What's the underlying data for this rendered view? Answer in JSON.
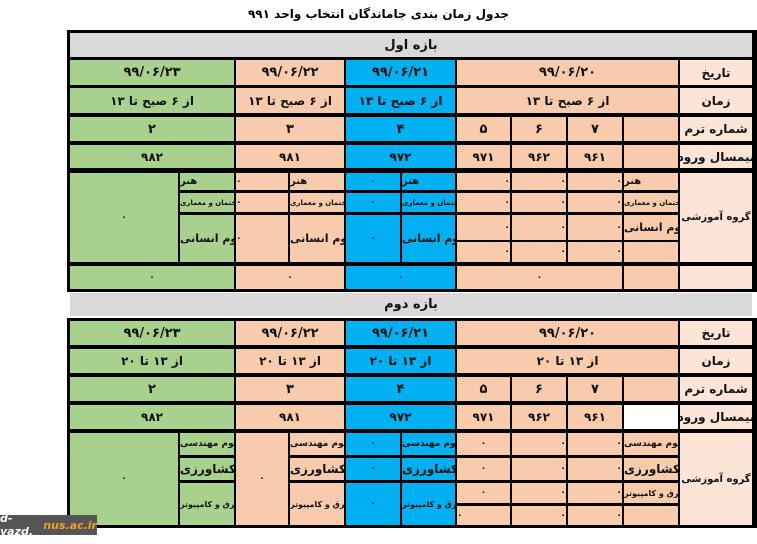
{
  "title": "جدول زمان بندی جاماندگان  انتخاب واحد ۹۹۱",
  "watermark": {
    "a": "d-yazd.",
    "b": "nus.ac.ir"
  },
  "colors": {
    "salmon": "#f8cbad",
    "blue": "#00b0f0",
    "green": "#a9d18e",
    "label": "#fce4d6",
    "band": "#d9d9d9"
  },
  "labels": {
    "date": "تاریخ",
    "time": "زمان",
    "term": "شماره ترم",
    "entry": "نیمسال ورود",
    "group": "گروه آموزشی"
  },
  "zero": "٠",
  "period1": {
    "band": "بازه اول",
    "dates": [
      "۹۹/۰۶/۲۰",
      "۹۹/۰۶/۲۱",
      "۹۹/۰۶/۲۲",
      "۹۹/۰۶/۲۳"
    ],
    "time": "از ۶ صبح تا ۱۳",
    "terms": [
      "",
      "۷",
      "۶",
      "۵",
      "۴",
      "۳",
      "۲"
    ],
    "entries": [
      "",
      "۹۶۱",
      "۹۶۲",
      "۹۷۱",
      "۹۷۲",
      "۹۸۱",
      "۹۸۲"
    ],
    "groups": [
      "هنر",
      "ساختمان و معماری",
      "علوم انسانی"
    ]
  },
  "period2": {
    "band": "بازه دوم",
    "dates": [
      "۹۹/۰۶/۲۰",
      "۹۹/۰۶/۲۱",
      "۹۹/۰۶/۲۲",
      "۹۹/۰۶/۲۳"
    ],
    "time": "از ۱۳  تا ۲۰",
    "terms": [
      "",
      "۷",
      "۶",
      "۵",
      "۴",
      "۳",
      "۲"
    ],
    "entries": [
      "",
      "۹۶۱",
      "۹۶۲",
      "۹۷۱",
      "۹۷۲",
      "۹۸۱",
      "۹۸۲"
    ],
    "groups": [
      "علوم مهندسی",
      "کشاورزی",
      "برق و کامپیوتر"
    ]
  }
}
